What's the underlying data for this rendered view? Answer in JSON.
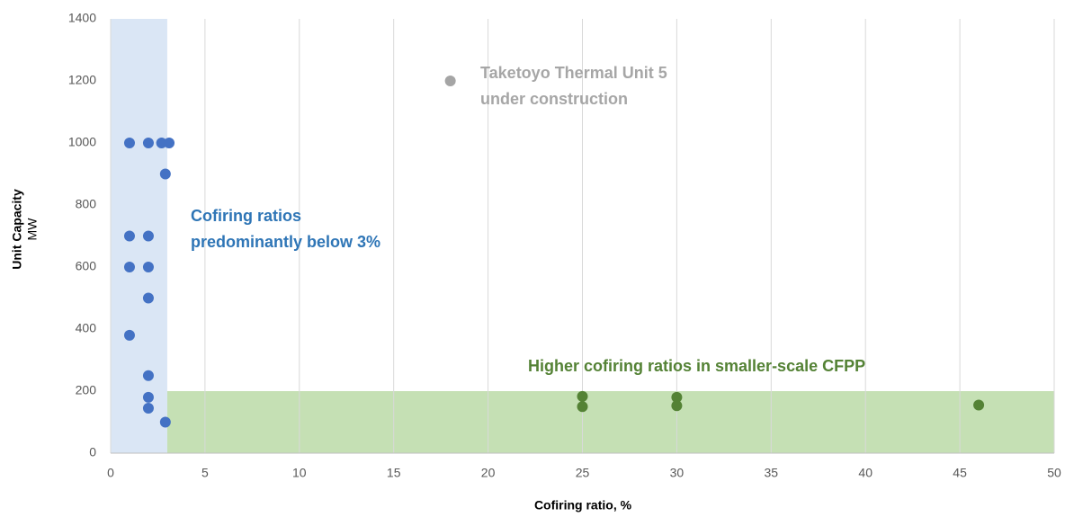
{
  "chart_data": {
    "type": "scatter",
    "xlabel": "Cofiring ratio, %",
    "ylabel": "Unit Capacity",
    "ylabel_unit": "MW",
    "xlim": [
      0,
      50
    ],
    "ylim": [
      0,
      1400
    ],
    "xticks": [
      0,
      5,
      10,
      15,
      20,
      25,
      30,
      35,
      40,
      45,
      50
    ],
    "yticks": [
      0,
      200,
      400,
      600,
      800,
      1000,
      1200,
      1400
    ],
    "grid": "x",
    "regions": [
      {
        "x": [
          0,
          3
        ],
        "y": [
          0,
          1400
        ],
        "color": "#dae6f5"
      },
      {
        "x": [
          3,
          50
        ],
        "y": [
          0,
          200
        ],
        "color": "#c5e0b4"
      }
    ],
    "series": [
      {
        "color": "#4472c4",
        "x": [
          1,
          2,
          2.7,
          3.1,
          2.9,
          1,
          2,
          1,
          2,
          2,
          1,
          2,
          2,
          2,
          2.9
        ],
        "values": [
          1000,
          1000,
          1000,
          1000,
          900,
          700,
          700,
          600,
          600,
          500,
          380,
          250,
          180,
          145,
          100
        ]
      },
      {
        "color": "#548235",
        "x": [
          25,
          25,
          30,
          30,
          46
        ],
        "values": [
          183,
          150,
          180,
          153,
          155
        ]
      },
      {
        "color": "#a5a5a5",
        "x": [
          18
        ],
        "values": [
          1200
        ]
      }
    ],
    "annotations": [
      {
        "lines": [
          "Taketoyo Thermal Unit 5",
          "under construction"
        ],
        "color": "#a6a6a6"
      },
      {
        "lines": [
          "Cofiring ratios",
          "predominantly below 3%"
        ],
        "color": "#2e75b6"
      },
      {
        "lines": [
          "Higher cofiring ratios in smaller-scale CFPP"
        ],
        "color": "#548235"
      }
    ]
  }
}
